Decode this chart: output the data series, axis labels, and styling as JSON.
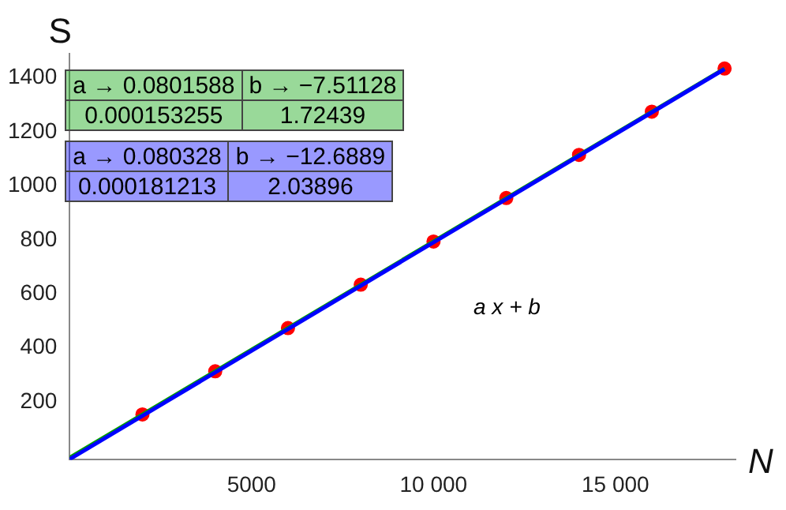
{
  "chart_data": {
    "type": "scatter",
    "xlabel": "N",
    "ylabel": "S",
    "series": [
      {
        "color": "#ff0000",
        "x": [
          2000,
          4000,
          6000,
          8000,
          10000,
          12000,
          14000,
          16000,
          18000
        ],
        "values": [
          153,
          313,
          473,
          634,
          794,
          955,
          1115,
          1275,
          1435
        ]
      },
      {
        "type": "line",
        "marker": "none",
        "color": "#00a000",
        "x": [
          0,
          18000
        ],
        "values": [
          -7.5,
          1435
        ]
      },
      {
        "type": "line",
        "marker": "none",
        "color": "#0000ff",
        "x": [
          0,
          18000
        ],
        "values": [
          -12.7,
          1433
        ]
      }
    ],
    "xlim": [
      0,
      18300
    ],
    "ylim": [
      -15,
      1490
    ],
    "xticks": [
      {
        "value": 5000,
        "label": "5000"
      },
      {
        "value": 10000,
        "label": "10 000"
      },
      {
        "value": 15000,
        "label": "15 000"
      }
    ],
    "yticks": [
      200,
      400,
      600,
      800,
      1000,
      1200,
      1400
    ],
    "grid": false,
    "legend": false,
    "marker": "circle",
    "line_style": "solid",
    "annotations": [
      "a → 0.0801588",
      "b → −7.51128",
      "0.000153255",
      "1.72439",
      "a → 0.080328",
      "b → −12.6889",
      "0.000181213",
      "2.03896",
      "a x + b"
    ]
  }
}
